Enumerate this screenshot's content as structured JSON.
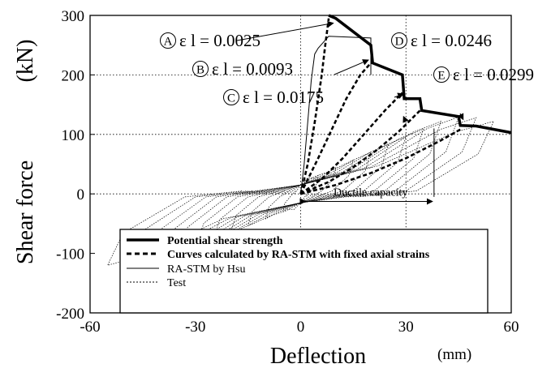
{
  "chart_data": {
    "type": "line",
    "xlabel": "Deflection",
    "xunit": "(mm)",
    "ylabel": "Shear force",
    "yunit": "(kN)",
    "xlim": [
      -60,
      60
    ],
    "ylim": [
      -200,
      300
    ],
    "xticks": [
      -60,
      -30,
      0,
      30,
      60
    ],
    "yticks": [
      -200,
      -100,
      0,
      100,
      200,
      300
    ],
    "grid": "dotted lines at x=0, x=30, y=0, y=100, y=200",
    "legend_position": "bottom-right",
    "series": [
      {
        "name": "Potential shear strength",
        "style": "thick-solid",
        "points": [
          [
            8,
            300
          ],
          [
            10,
            295
          ],
          [
            20,
            250
          ],
          [
            20.5,
            220
          ],
          [
            29,
            200
          ],
          [
            29.5,
            160
          ],
          [
            34,
            160
          ],
          [
            34.5,
            140
          ],
          [
            45,
            130
          ],
          [
            45.5,
            115
          ],
          [
            50,
            114
          ],
          [
            60,
            103
          ]
        ]
      },
      {
        "name": "Curves calculated by RA-STM with fixed axial strains",
        "style": "dashed",
        "curves": [
          {
            "label": "A",
            "points": [
              [
                0,
                0
              ],
              [
                2,
                50
              ],
              [
                4,
                120
              ],
              [
                6,
                200
              ],
              [
                7,
                250
              ],
              [
                8,
                295
              ]
            ]
          },
          {
            "label": "B",
            "points": [
              [
                0,
                0
              ],
              [
                5,
                60
              ],
              [
                9,
                110
              ],
              [
                13,
                160
              ],
              [
                17,
                200
              ],
              [
                20,
                220
              ]
            ]
          },
          {
            "label": "C",
            "points": [
              [
                0,
                0
              ],
              [
                6,
                25
              ],
              [
                12,
                60
              ],
              [
                18,
                100
              ],
              [
                24,
                140
              ],
              [
                29,
                170
              ]
            ]
          },
          {
            "label": "D",
            "points": [
              [
                0,
                0
              ],
              [
                8,
                20
              ],
              [
                15,
                45
              ],
              [
                22,
                75
              ],
              [
                28,
                105
              ],
              [
                34,
                140
              ]
            ]
          },
          {
            "label": "E",
            "points": [
              [
                0,
                0
              ],
              [
                10,
                15
              ],
              [
                20,
                35
              ],
              [
                30,
                60
              ],
              [
                40,
                90
              ],
              [
                46,
                110
              ]
            ]
          }
        ]
      },
      {
        "name": "RA-STM by Hsu",
        "style": "thin-solid",
        "points": [
          [
            0,
            0
          ],
          [
            1,
            50
          ],
          [
            2,
            120
          ],
          [
            3,
            190
          ],
          [
            4,
            235
          ],
          [
            5,
            245
          ],
          [
            8,
            265
          ],
          [
            20,
            262
          ],
          [
            20,
            220
          ],
          [
            20,
            200
          ]
        ]
      },
      {
        "name": "Test",
        "style": "dotted",
        "note": "cyclic hysteresis loops from about -60 mm to +60 mm"
      }
    ],
    "annotations": [
      {
        "marker": "A",
        "text": "ε l = 0.0025",
        "target": [
          10,
          287
        ]
      },
      {
        "marker": "B",
        "text": "ε l = 0.0093",
        "target": [
          20,
          225
        ]
      },
      {
        "marker": "C",
        "text": "ε l = 0.0175",
        "target": [
          30,
          168
        ]
      },
      {
        "marker": "D",
        "text": "ε l = 0.0246",
        "target": [
          30,
          130
        ]
      },
      {
        "marker": "E",
        "text": "ε l = 0.0299",
        "target": [
          47,
          125
        ]
      },
      {
        "text": "Ductile capacity",
        "span": [
          0,
          38
        ],
        "y": -10
      }
    ]
  }
}
